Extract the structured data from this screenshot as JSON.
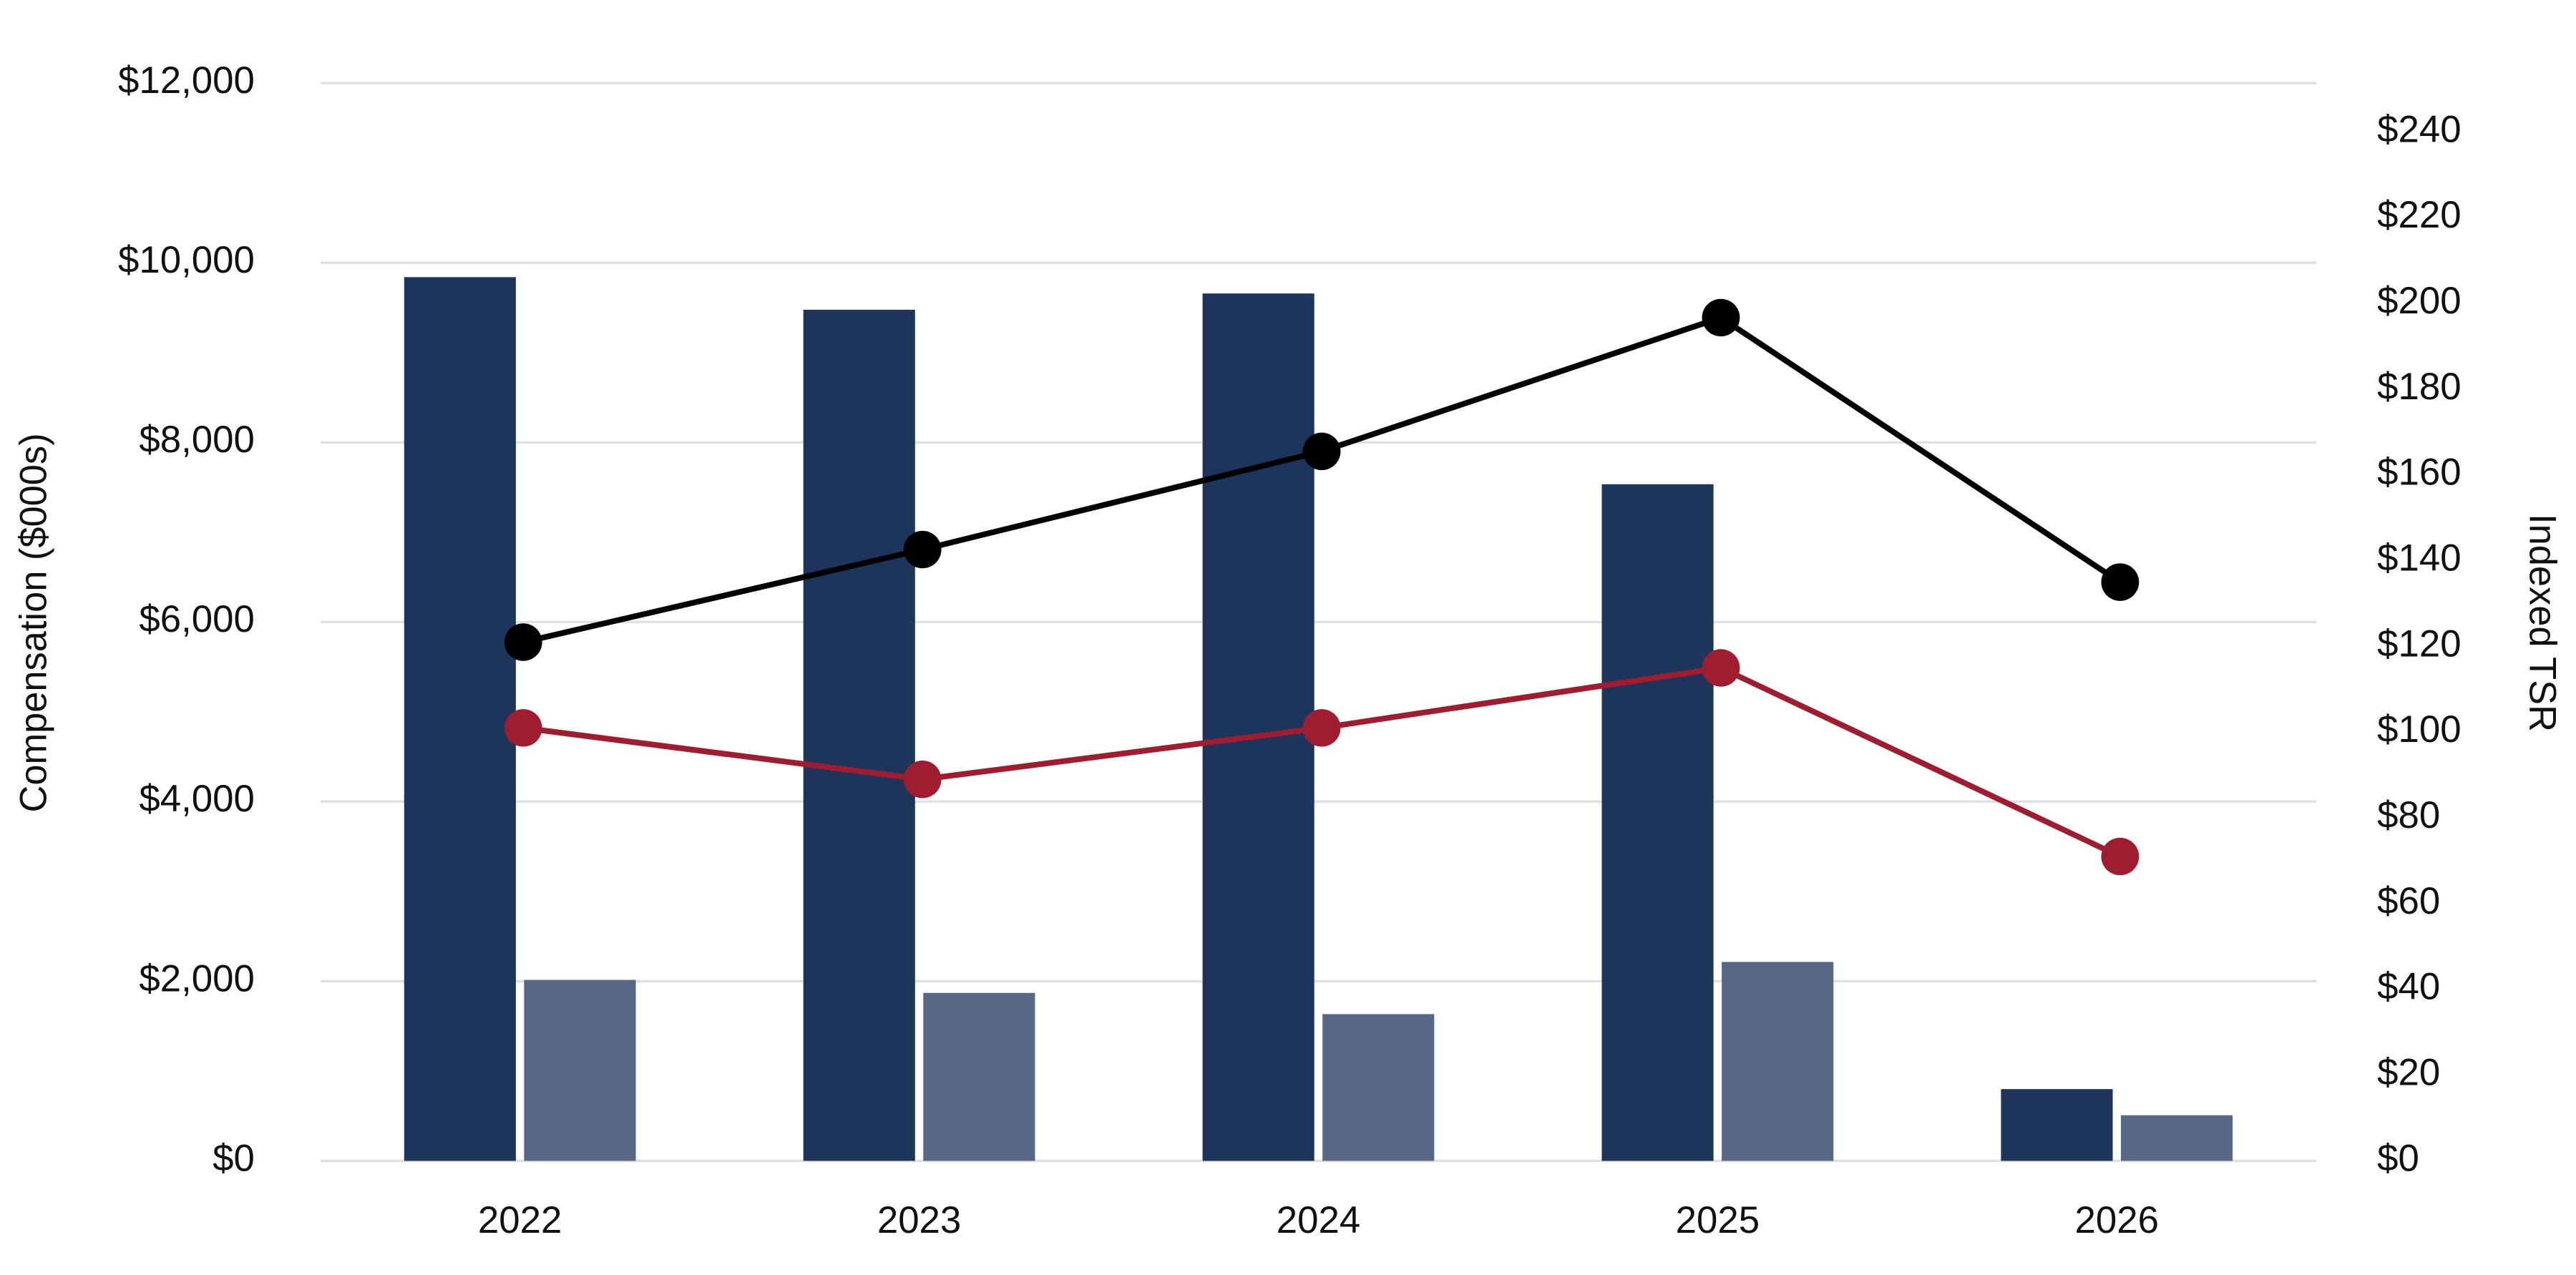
{
  "chart_data": {
    "type": "bar",
    "categories": [
      "2022",
      "2023",
      "2024",
      "2025",
      "2026"
    ],
    "series": [
      {
        "type": "bar",
        "color": "#1d355b",
        "values": [
          9840,
          9477,
          9658,
          7534,
          799
        ]
      },
      {
        "type": "bar",
        "color": "#566885",
        "values": [
          2015,
          1870,
          1634,
          2215,
          508
        ]
      },
      {
        "type": "line",
        "axis": "y2",
        "color": "#000000",
        "values": [
          121,
          142.6,
          165.5,
          196.7,
          135
        ]
      },
      {
        "type": "line",
        "axis": "y2",
        "color": "#a01c2f",
        "values": [
          101,
          89,
          101,
          115,
          71
        ]
      }
    ],
    "ylabel": "Compensation ($000s)",
    "y2label": "Indexed TSR",
    "ylim": [
      0,
      12000
    ],
    "yticks": [
      {
        "value": 0,
        "label": "$0"
      },
      {
        "value": 2000,
        "label": "$2,000"
      },
      {
        "value": 4000,
        "label": "$4,000"
      },
      {
        "value": 6000,
        "label": "$6,000"
      },
      {
        "value": 8000,
        "label": "$8,000"
      },
      {
        "value": 10000,
        "label": "$10,000"
      },
      {
        "value": 12000,
        "label": "$12,000"
      }
    ],
    "y2lim": [
      0,
      251.4
    ],
    "y2ticks": [
      {
        "value": 0,
        "label": "$0"
      },
      {
        "value": 20,
        "label": "$20"
      },
      {
        "value": 40,
        "label": "$40"
      },
      {
        "value": 60,
        "label": "$60"
      },
      {
        "value": 80,
        "label": "$80"
      },
      {
        "value": 100,
        "label": "$100"
      },
      {
        "value": 120,
        "label": "$120"
      },
      {
        "value": 140,
        "label": "$140"
      },
      {
        "value": 160,
        "label": "$160"
      },
      {
        "value": 180,
        "label": "$180"
      },
      {
        "value": 200,
        "label": "$200"
      },
      {
        "value": 220,
        "label": "$220"
      },
      {
        "value": 240,
        "label": "$240"
      }
    ],
    "grid": true
  }
}
